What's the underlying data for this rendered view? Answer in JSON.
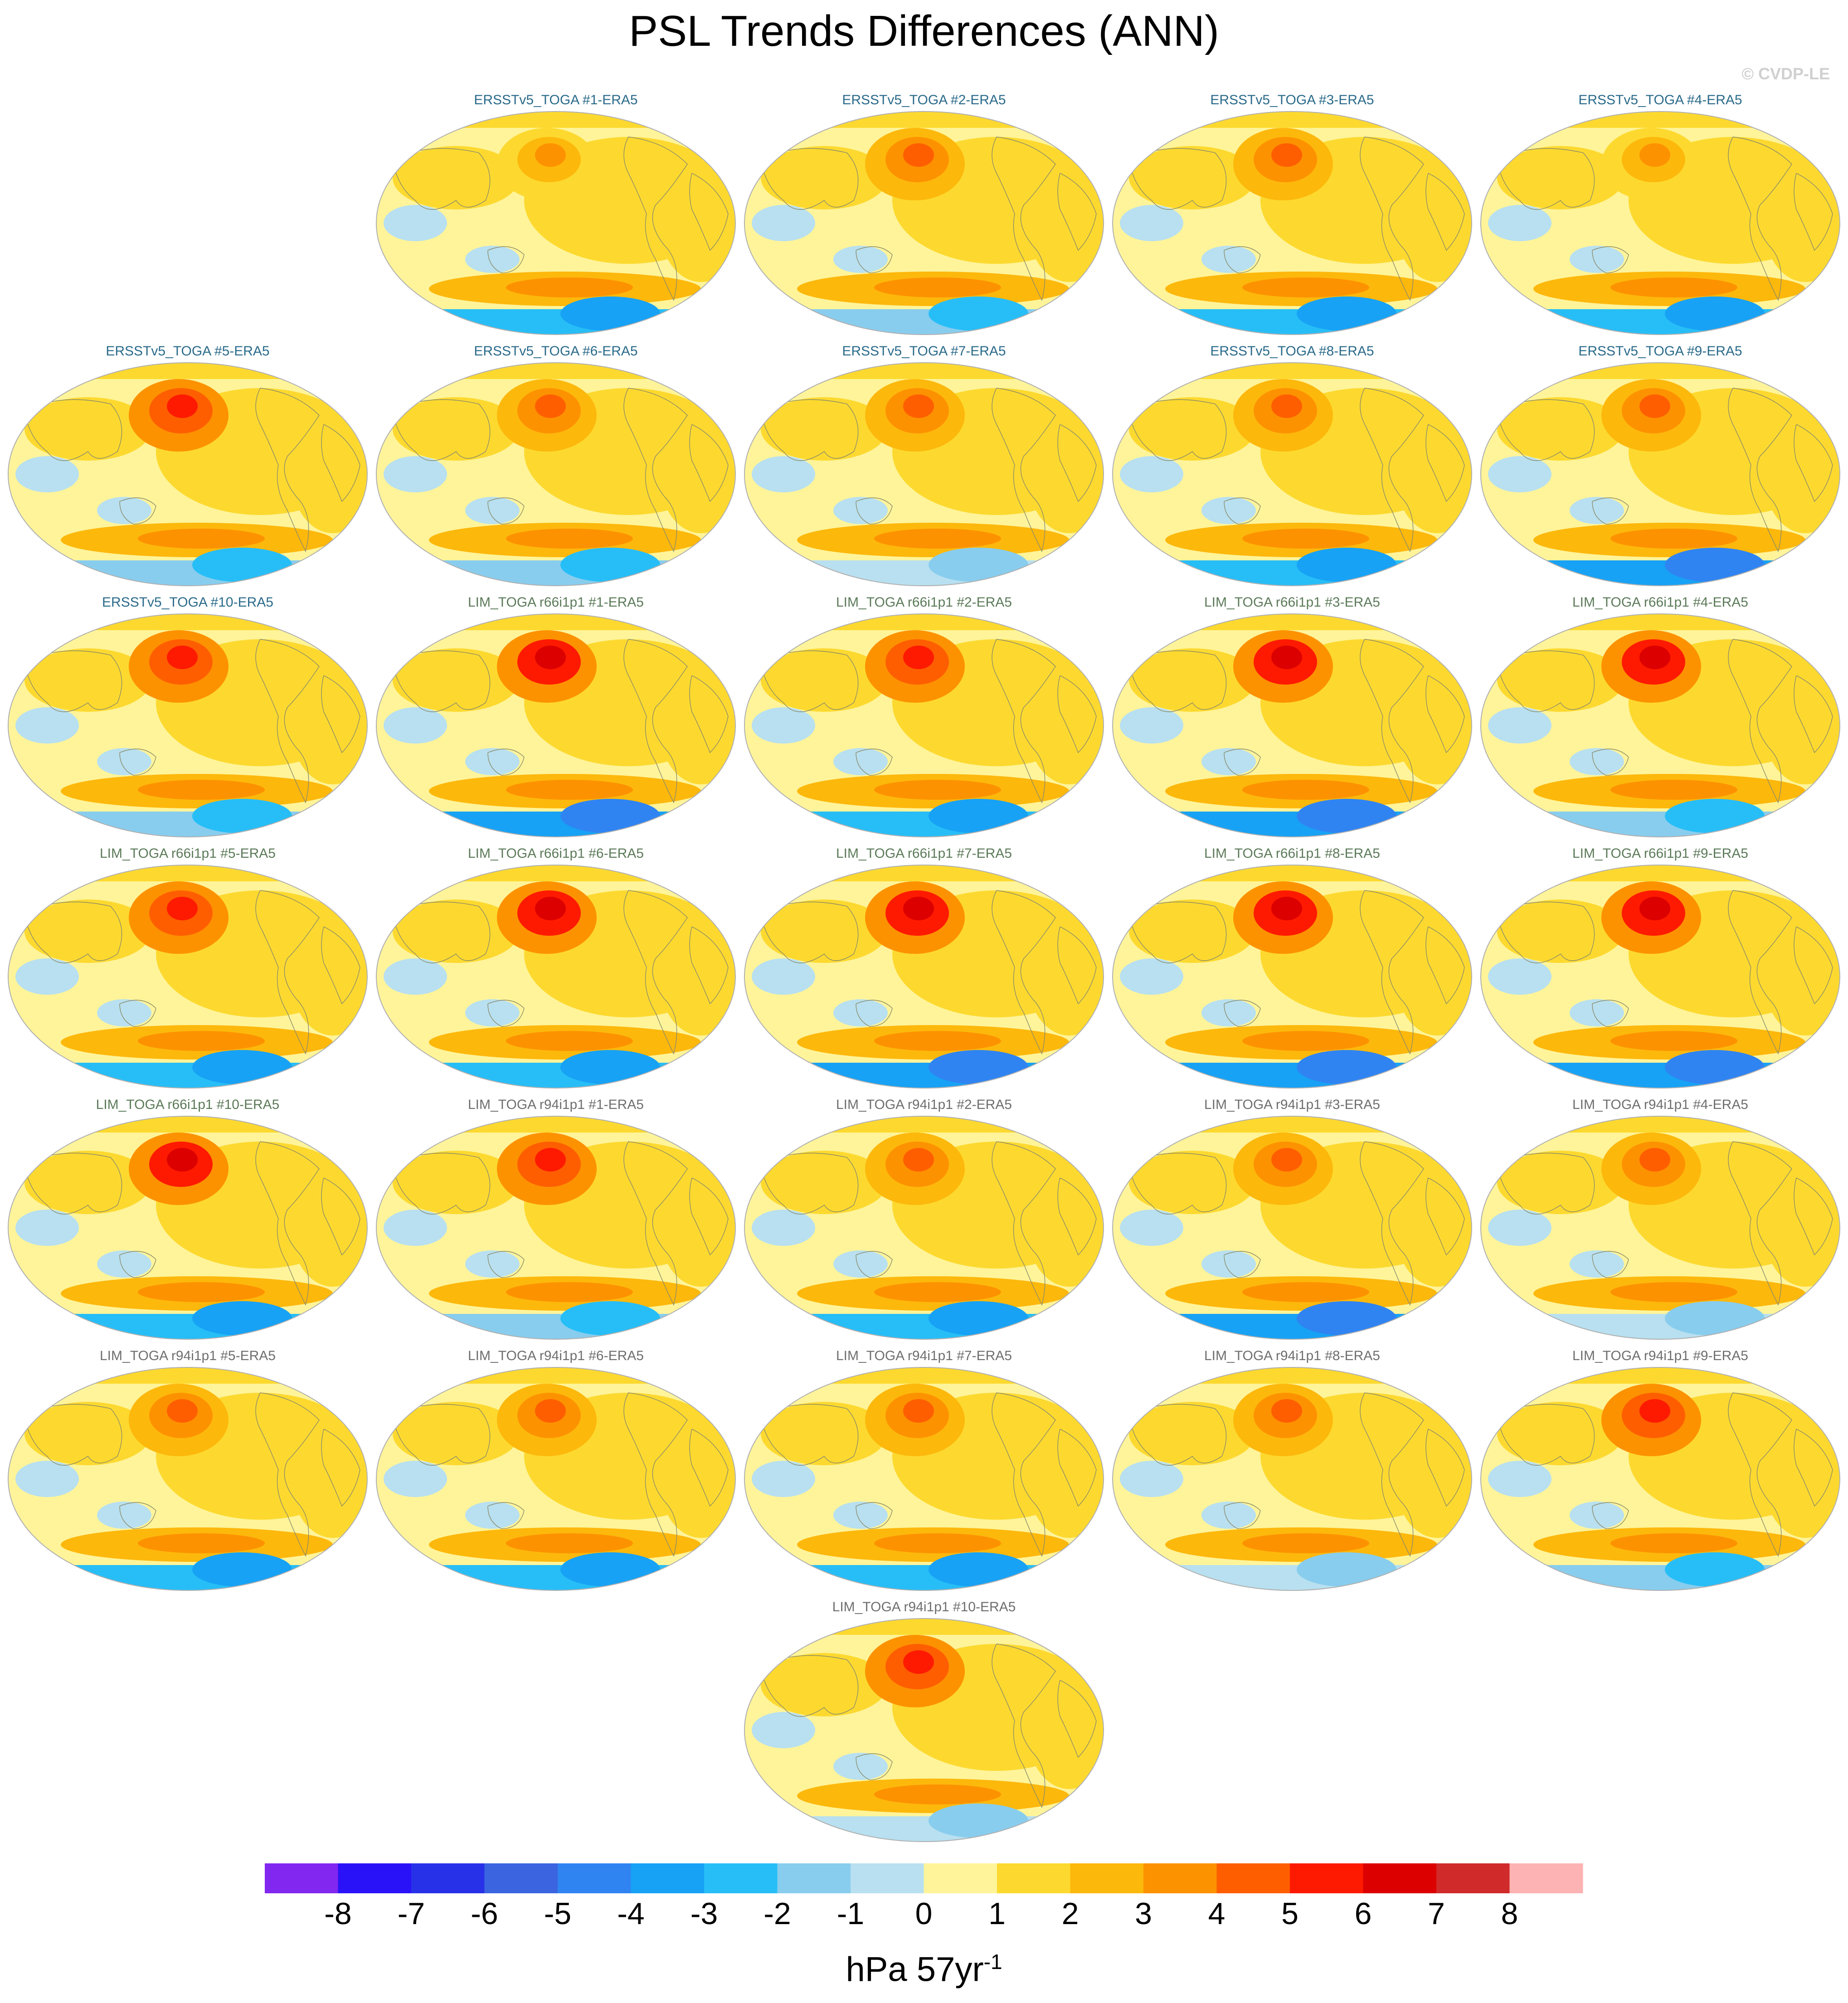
{
  "title": "PSL Trends Differences (ANN)",
  "credit": "© CVDP-LE",
  "colors": {
    "ersst_title": "#2a6a8a",
    "lim66_title": "#5b7a58",
    "lim94_title": "#6e6e6e",
    "coast": "#8a8a6a"
  },
  "panels": [
    {
      "title": "ERSSTv5_TOGA #1-ERA5",
      "group": "ersst",
      "peak": 3,
      "south_blue": -3
    },
    {
      "title": "ERSSTv5_TOGA #2-ERA5",
      "group": "ersst",
      "peak": 4,
      "south_blue": -2
    },
    {
      "title": "ERSSTv5_TOGA #3-ERA5",
      "group": "ersst",
      "peak": 4,
      "south_blue": -3
    },
    {
      "title": "ERSSTv5_TOGA #4-ERA5",
      "group": "ersst",
      "peak": 3,
      "south_blue": -3
    },
    {
      "title": "ERSSTv5_TOGA #5-ERA5",
      "group": "ersst",
      "peak": 5,
      "south_blue": -2
    },
    {
      "title": "ERSSTv5_TOGA #6-ERA5",
      "group": "ersst",
      "peak": 4,
      "south_blue": -2
    },
    {
      "title": "ERSSTv5_TOGA #7-ERA5",
      "group": "ersst",
      "peak": 4,
      "south_blue": -1
    },
    {
      "title": "ERSSTv5_TOGA #8-ERA5",
      "group": "ersst",
      "peak": 4,
      "south_blue": -3
    },
    {
      "title": "ERSSTv5_TOGA #9-ERA5",
      "group": "ersst",
      "peak": 4,
      "south_blue": -4
    },
    {
      "title": "ERSSTv5_TOGA #10-ERA5",
      "group": "ersst",
      "peak": 5,
      "south_blue": -2
    },
    {
      "title": "LIM_TOGA r66i1p1 #1-ERA5",
      "group": "lim66",
      "peak": 6,
      "south_blue": -4
    },
    {
      "title": "LIM_TOGA r66i1p1 #2-ERA5",
      "group": "lim66",
      "peak": 5,
      "south_blue": -3
    },
    {
      "title": "LIM_TOGA r66i1p1 #3-ERA5",
      "group": "lim66",
      "peak": 6,
      "south_blue": -4
    },
    {
      "title": "LIM_TOGA r66i1p1 #4-ERA5",
      "group": "lim66",
      "peak": 6,
      "south_blue": -2
    },
    {
      "title": "LIM_TOGA r66i1p1 #5-ERA5",
      "group": "lim66",
      "peak": 5,
      "south_blue": -3
    },
    {
      "title": "LIM_TOGA r66i1p1 #6-ERA5",
      "group": "lim66",
      "peak": 6,
      "south_blue": -3
    },
    {
      "title": "LIM_TOGA r66i1p1 #7-ERA5",
      "group": "lim66",
      "peak": 6,
      "south_blue": -4
    },
    {
      "title": "LIM_TOGA r66i1p1 #8-ERA5",
      "group": "lim66",
      "peak": 6,
      "south_blue": -4
    },
    {
      "title": "LIM_TOGA r66i1p1 #9-ERA5",
      "group": "lim66",
      "peak": 6,
      "south_blue": -4
    },
    {
      "title": "LIM_TOGA r66i1p1 #10-ERA5",
      "group": "lim66",
      "peak": 6,
      "south_blue": -3
    },
    {
      "title": "LIM_TOGA r94i1p1 #1-ERA5",
      "group": "lim94",
      "peak": 5,
      "south_blue": -2
    },
    {
      "title": "LIM_TOGA r94i1p1 #2-ERA5",
      "group": "lim94",
      "peak": 4,
      "south_blue": -3
    },
    {
      "title": "LIM_TOGA r94i1p1 #3-ERA5",
      "group": "lim94",
      "peak": 4,
      "south_blue": -4
    },
    {
      "title": "LIM_TOGA r94i1p1 #4-ERA5",
      "group": "lim94",
      "peak": 4,
      "south_blue": -1
    },
    {
      "title": "LIM_TOGA r94i1p1 #5-ERA5",
      "group": "lim94",
      "peak": 4,
      "south_blue": -3
    },
    {
      "title": "LIM_TOGA r94i1p1 #6-ERA5",
      "group": "lim94",
      "peak": 4,
      "south_blue": -3
    },
    {
      "title": "LIM_TOGA r94i1p1 #7-ERA5",
      "group": "lim94",
      "peak": 4,
      "south_blue": -3
    },
    {
      "title": "LIM_TOGA r94i1p1 #8-ERA5",
      "group": "lim94",
      "peak": 4,
      "south_blue": -1
    },
    {
      "title": "LIM_TOGA r94i1p1 #9-ERA5",
      "group": "lim94",
      "peak": 5,
      "south_blue": -2
    },
    {
      "title": "LIM_TOGA r94i1p1 #10-ERA5",
      "group": "lim94",
      "peak": 5,
      "south_blue": -1
    }
  ],
  "colorbar": {
    "units": "hPa 57yr",
    "units_exponent": "-1",
    "ticks": [
      "-8",
      "-7",
      "-6",
      "-5",
      "-4",
      "-3",
      "-2",
      "-1",
      "0",
      "1",
      "2",
      "3",
      "4",
      "5",
      "6",
      "7",
      "8"
    ],
    "colors": [
      "#8127f0",
      "#2a12f8",
      "#2732e8",
      "#3b64e0",
      "#2f84f2",
      "#17a2f5",
      "#27bef7",
      "#88cdee",
      "#b8e0f0",
      "#fff49a",
      "#fdd92f",
      "#fdb80c",
      "#fd9200",
      "#fe5e00",
      "#fe1a00",
      "#dc0000",
      "#d12a2a",
      "#fdb3b3"
    ]
  }
}
